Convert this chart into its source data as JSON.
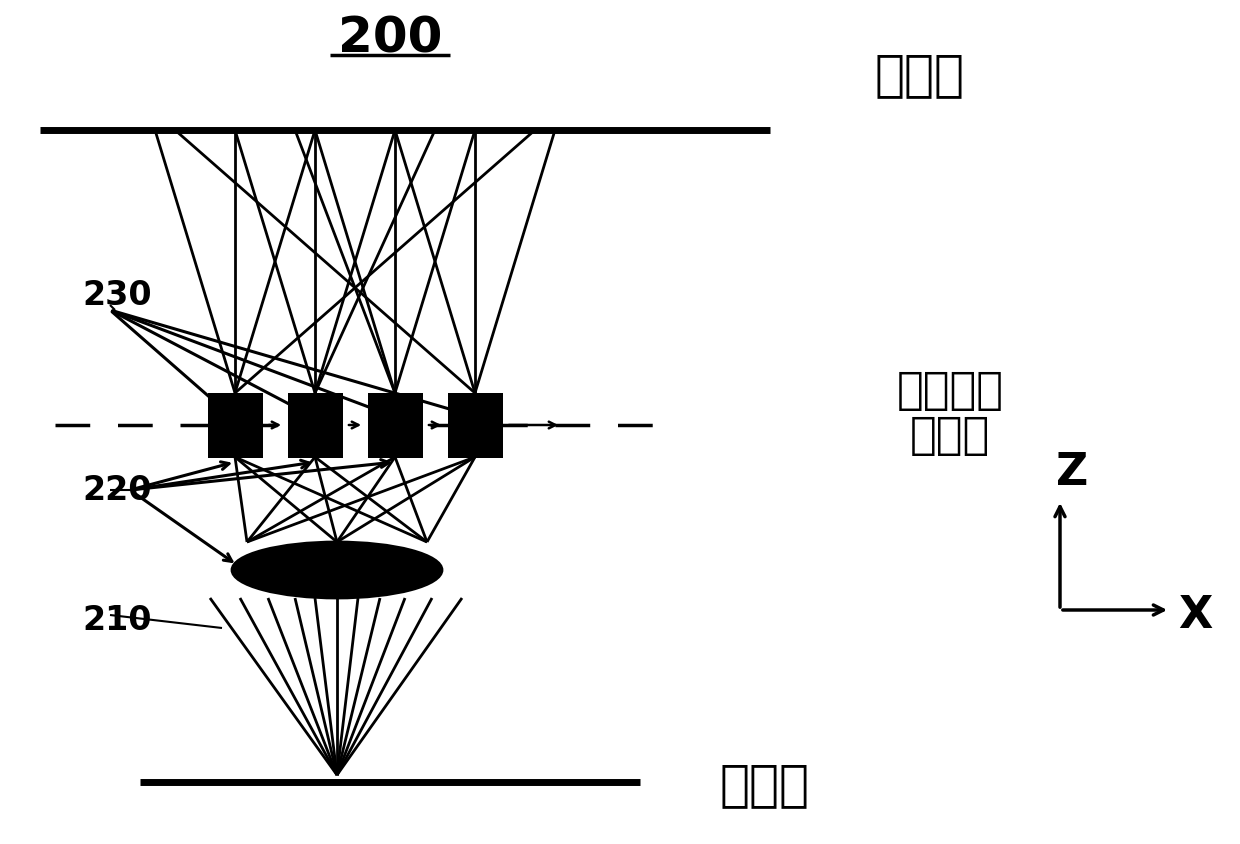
{
  "background_color": "#ffffff",
  "title_text": "200",
  "label_image_plane": "像平面",
  "label_object_plane": "物平面",
  "label_back_focal_1": "显微物镜",
  "label_back_focal_2": "后焦面",
  "label_230": "230",
  "label_220": "220",
  "label_210": "210",
  "label_z": "Z",
  "label_x": "X",
  "fig_w": 12.4,
  "fig_h": 8.44,
  "dpi": 100
}
